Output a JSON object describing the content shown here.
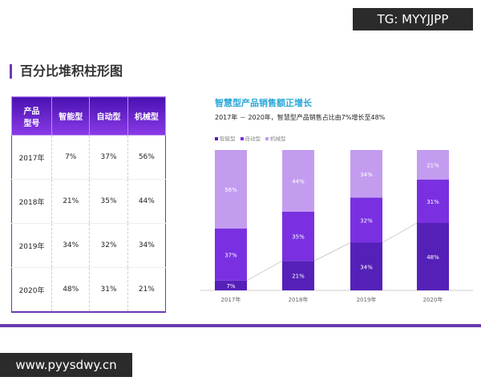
{
  "watermark_top": "TG: MYYJJPP",
  "watermark_bottom": "www.pyysdwy.cn",
  "page_title": "百分比堆积柱形图",
  "table": {
    "headers": [
      "产品\n型号",
      "智能型",
      "自动型",
      "机械型"
    ],
    "rows": [
      [
        "2017年",
        "7%",
        "37%",
        "56%"
      ],
      [
        "2018年",
        "21%",
        "35%",
        "44%"
      ],
      [
        "2019年",
        "34%",
        "32%",
        "34%"
      ],
      [
        "2020年",
        "48%",
        "31%",
        "21%"
      ]
    ]
  },
  "chart_data": {
    "type": "bar",
    "stacked": "percent",
    "title": "智慧型产品销售额正增长",
    "subtitle": "2017年 － 2020年，智慧型产品销售占比由7%增长至48%",
    "categories": [
      "2017年",
      "2018年",
      "2019年",
      "2020年"
    ],
    "series": [
      {
        "name": "智能型",
        "values": [
          7,
          21,
          34,
          48
        ],
        "color": "#5520b8"
      },
      {
        "name": "自动型",
        "values": [
          37,
          35,
          32,
          31
        ],
        "color": "#7a30e0"
      },
      {
        "name": "机械型",
        "values": [
          56,
          44,
          34,
          21
        ],
        "color": "#c39cf0"
      }
    ],
    "legend": "top-left",
    "ylim": [
      0,
      100
    ]
  }
}
